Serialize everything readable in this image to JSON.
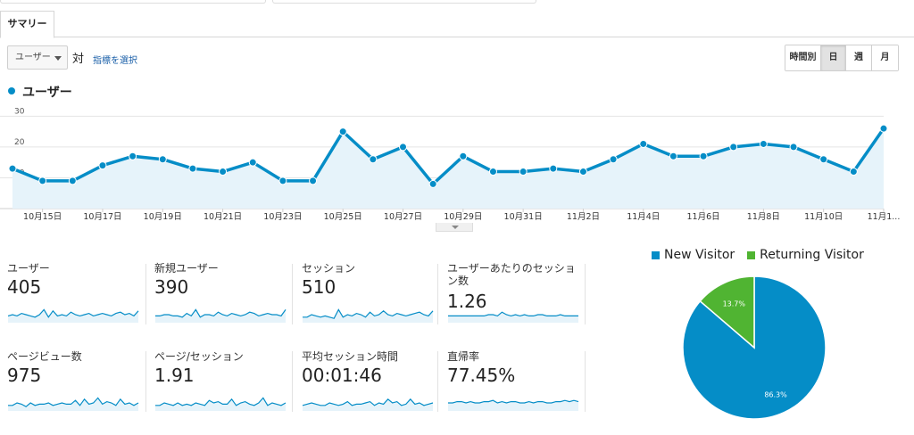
{
  "tab": {
    "label": "サマリー"
  },
  "controls": {
    "metric_select": "ユーザー",
    "vs": "対",
    "pick_metric": "指標を選択",
    "time_buttons": [
      "時間別",
      "日",
      "週",
      "月"
    ],
    "active_time": "日"
  },
  "legend": {
    "label": "ユーザー"
  },
  "colors": {
    "primary": "#058dc7",
    "returning": "#50b432",
    "area": "#e6f3fa"
  },
  "chart_data": [
    {
      "type": "area",
      "series": [
        {
          "name": "ユーザー",
          "values": [
            13,
            9,
            9,
            14,
            17,
            16,
            13,
            12,
            15,
            9,
            9,
            25,
            16,
            20,
            8,
            17,
            12,
            12,
            13,
            12,
            16,
            21,
            17,
            17,
            20,
            21,
            20,
            16,
            12,
            26
          ]
        }
      ],
      "ylim": [
        0,
        33
      ],
      "yticks": [
        "30",
        "20",
        "10"
      ],
      "xticks": [
        "10月15日",
        "10月17日",
        "10月19日",
        "10月21日",
        "10月23日",
        "10月25日",
        "10月27日",
        "10月29日",
        "10月31日",
        "11月2日",
        "11月4日",
        "11月6日",
        "11月8日",
        "11月10日",
        "11月1..."
      ],
      "grid": true
    },
    {
      "type": "pie",
      "categories": [
        "New Visitor",
        "Returning Visitor"
      ],
      "values": [
        86.3,
        13.7
      ],
      "labels": [
        "86.3%",
        "13.7%"
      ],
      "legend": "top"
    }
  ],
  "metrics": [
    {
      "label": "ユーザー",
      "value": "405",
      "spark": [
        4,
        5,
        4,
        6,
        5,
        4,
        3,
        5,
        9,
        3,
        8,
        4,
        5,
        4,
        7,
        5,
        4,
        5,
        6,
        4,
        5,
        6,
        5,
        4,
        6,
        7,
        5,
        6,
        4,
        8
      ]
    },
    {
      "label": "新規ユーザー",
      "value": "390",
      "spark": [
        4,
        4,
        5,
        5,
        4,
        4,
        3,
        6,
        4,
        9,
        3,
        5,
        5,
        4,
        7,
        5,
        4,
        6,
        5,
        4,
        5,
        7,
        6,
        4,
        5,
        6,
        5,
        5,
        4,
        9
      ]
    },
    {
      "label": "セッション",
      "value": "510",
      "spark": [
        3,
        3,
        5,
        4,
        3,
        4,
        3,
        2,
        9,
        3,
        5,
        4,
        6,
        5,
        3,
        7,
        4,
        5,
        8,
        5,
        4,
        6,
        5,
        4,
        5,
        6,
        7,
        5,
        4,
        8
      ]
    },
    {
      "label": "ユーザーあたりのセッション数",
      "value": "1.26",
      "spark": [
        4,
        4,
        4,
        4,
        4,
        4,
        4,
        4,
        4,
        5,
        5,
        4,
        7,
        5,
        4,
        5,
        4,
        5,
        4,
        4,
        5,
        5,
        4,
        4,
        4,
        5,
        4,
        4,
        4,
        4
      ]
    },
    {
      "label": "ページビュー数",
      "value": "975",
      "spark": [
        3,
        3,
        5,
        4,
        2,
        5,
        3,
        4,
        4,
        5,
        3,
        4,
        5,
        4,
        4,
        7,
        3,
        8,
        4,
        5,
        9,
        4,
        6,
        5,
        3,
        8,
        4,
        5,
        3,
        5
      ]
    },
    {
      "label": "ページ/セッション",
      "value": "1.91",
      "spark": [
        3,
        3,
        5,
        4,
        3,
        5,
        3,
        4,
        3,
        5,
        4,
        3,
        7,
        5,
        6,
        4,
        4,
        8,
        3,
        5,
        6,
        4,
        3,
        5,
        9,
        3,
        5,
        4,
        3,
        5
      ]
    },
    {
      "label": "平均セッション時間",
      "value": "00:01:46",
      "spark": [
        3,
        4,
        5,
        4,
        3,
        3,
        5,
        4,
        3,
        4,
        6,
        3,
        4,
        4,
        5,
        6,
        3,
        5,
        4,
        8,
        5,
        6,
        3,
        4,
        8,
        4,
        5,
        3,
        4,
        5
      ]
    },
    {
      "label": "直帰率",
      "value": "77.45%",
      "spark": [
        5,
        5,
        6,
        6,
        5,
        6,
        5,
        5,
        6,
        6,
        7,
        5,
        6,
        5,
        6,
        6,
        5,
        5,
        6,
        5,
        6,
        6,
        5,
        5,
        6,
        6,
        7,
        6,
        7,
        6
      ]
    }
  ]
}
